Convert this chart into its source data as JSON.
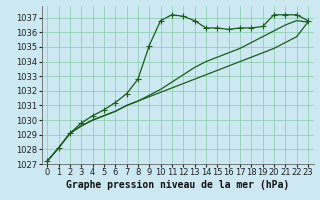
{
  "xlabel": "Graphe pression niveau de la mer (hPa)",
  "background_color": "#cce8f0",
  "grid_color": "#88ccaa",
  "line_color": "#1a5c1a",
  "xlim": [
    -0.5,
    23.5
  ],
  "ylim": [
    1027,
    1037.8
  ],
  "yticks": [
    1027,
    1028,
    1029,
    1030,
    1031,
    1032,
    1033,
    1034,
    1035,
    1036,
    1037
  ],
  "xticks": [
    0,
    1,
    2,
    3,
    4,
    5,
    6,
    7,
    8,
    9,
    10,
    11,
    12,
    13,
    14,
    15,
    16,
    17,
    18,
    19,
    20,
    21,
    22,
    23
  ],
  "series1_x": [
    0,
    1,
    2,
    3,
    4,
    5,
    6,
    7,
    8,
    9,
    10,
    11,
    12,
    13,
    14,
    15,
    16,
    17,
    18,
    19,
    20,
    21,
    22,
    23
  ],
  "series1_y": [
    1027.2,
    1028.1,
    1029.1,
    1029.8,
    1030.3,
    1030.7,
    1031.2,
    1031.8,
    1032.8,
    1035.1,
    1036.8,
    1037.2,
    1037.1,
    1036.8,
    1036.3,
    1036.3,
    1036.2,
    1036.3,
    1036.3,
    1036.4,
    1037.2,
    1037.2,
    1037.2,
    1036.8
  ],
  "series2_x": [
    0,
    1,
    2,
    3,
    4,
    5,
    6,
    7,
    8,
    9,
    10,
    11,
    12,
    13,
    14,
    15,
    16,
    17,
    18,
    19,
    20,
    21,
    22,
    23
  ],
  "series2_y": [
    1027.2,
    1028.1,
    1029.1,
    1029.6,
    1030.0,
    1030.3,
    1030.6,
    1031.0,
    1031.3,
    1031.6,
    1031.9,
    1032.2,
    1032.5,
    1032.8,
    1033.1,
    1033.4,
    1033.7,
    1034.0,
    1034.3,
    1034.6,
    1034.9,
    1035.3,
    1035.7,
    1036.7
  ],
  "series3_x": [
    0,
    1,
    2,
    3,
    4,
    5,
    6,
    7,
    8,
    9,
    10,
    11,
    12,
    13,
    14,
    15,
    16,
    17,
    18,
    19,
    20,
    21,
    22,
    23
  ],
  "series3_y": [
    1027.2,
    1028.1,
    1029.1,
    1029.6,
    1030.0,
    1030.3,
    1030.6,
    1031.0,
    1031.3,
    1031.7,
    1032.1,
    1032.6,
    1033.1,
    1033.6,
    1034.0,
    1034.3,
    1034.6,
    1034.9,
    1035.3,
    1035.7,
    1036.1,
    1036.5,
    1036.8,
    1036.7
  ],
  "xlabel_fontsize": 7,
  "tick_fontsize": 6,
  "marker": "+",
  "marker_size": 4,
  "linewidth": 0.9
}
